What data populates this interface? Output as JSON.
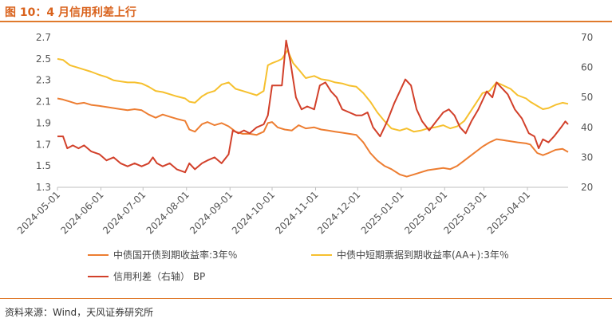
{
  "header": {
    "title": "图 10：4 月信用利差上行"
  },
  "footer": {
    "source": "资料来源：Wind，天风证券研究所"
  },
  "chart_data": {
    "type": "line",
    "x_tick_labels": [
      "2024-05-01",
      "2024-06-01",
      "2024-07-01",
      "2024-08-01",
      "2024-09-01",
      "2024-10-01",
      "2024-11-01",
      "2024-12-01",
      "2025-01-01",
      "2025-02-01",
      "2025-03-01",
      "2025-04-01"
    ],
    "x_range": [
      "2024-05-01",
      "2025-04-30"
    ],
    "y_left": {
      "range": [
        1.3,
        2.7
      ],
      "ticks": [
        "1.3",
        "1.5",
        "1.7",
        "1.9",
        "2.1",
        "2.3",
        "2.5",
        "2.7"
      ]
    },
    "y_right": {
      "range": [
        20,
        70
      ],
      "ticks": [
        "20",
        "30",
        "40",
        "50",
        "60",
        "70"
      ]
    },
    "grid": false,
    "legend_position": "bottom",
    "series": [
      {
        "name": "中债国开债到期收益率:3年％",
        "axis": "left",
        "color": "#ed7d31",
        "points": [
          [
            "2024-05-01",
            2.13
          ],
          [
            "2024-05-05",
            2.12
          ],
          [
            "2024-05-10",
            2.1
          ],
          [
            "2024-05-15",
            2.08
          ],
          [
            "2024-05-20",
            2.09
          ],
          [
            "2024-05-25",
            2.07
          ],
          [
            "2024-05-31",
            2.06
          ],
          [
            "2024-06-05",
            2.05
          ],
          [
            "2024-06-10",
            2.04
          ],
          [
            "2024-06-15",
            2.03
          ],
          [
            "2024-06-20",
            2.02
          ],
          [
            "2024-06-25",
            2.03
          ],
          [
            "2024-06-30",
            2.02
          ],
          [
            "2024-07-05",
            1.98
          ],
          [
            "2024-07-10",
            1.95
          ],
          [
            "2024-07-15",
            1.98
          ],
          [
            "2024-07-20",
            1.96
          ],
          [
            "2024-07-25",
            1.94
          ],
          [
            "2024-07-31",
            1.92
          ],
          [
            "2024-08-03",
            1.84
          ],
          [
            "2024-08-07",
            1.82
          ],
          [
            "2024-08-12",
            1.89
          ],
          [
            "2024-08-16",
            1.91
          ],
          [
            "2024-08-21",
            1.88
          ],
          [
            "2024-08-26",
            1.9
          ],
          [
            "2024-08-31",
            1.87
          ],
          [
            "2024-09-05",
            1.82
          ],
          [
            "2024-09-10",
            1.8
          ],
          [
            "2024-09-15",
            1.8
          ],
          [
            "2024-09-20",
            1.79
          ],
          [
            "2024-09-25",
            1.82
          ],
          [
            "2024-09-28",
            1.9
          ],
          [
            "2024-10-01",
            1.91
          ],
          [
            "2024-10-05",
            1.86
          ],
          [
            "2024-10-10",
            1.84
          ],
          [
            "2024-10-15",
            1.83
          ],
          [
            "2024-10-20",
            1.88
          ],
          [
            "2024-10-25",
            1.85
          ],
          [
            "2024-10-31",
            1.86
          ],
          [
            "2024-11-05",
            1.84
          ],
          [
            "2024-11-10",
            1.83
          ],
          [
            "2024-11-15",
            1.82
          ],
          [
            "2024-11-20",
            1.81
          ],
          [
            "2024-11-25",
            1.8
          ],
          [
            "2024-11-30",
            1.79
          ],
          [
            "2024-12-05",
            1.72
          ],
          [
            "2024-12-10",
            1.62
          ],
          [
            "2024-12-15",
            1.55
          ],
          [
            "2024-12-20",
            1.5
          ],
          [
            "2024-12-25",
            1.47
          ],
          [
            "2024-12-31",
            1.42
          ],
          [
            "2025-01-05",
            1.4
          ],
          [
            "2025-01-10",
            1.42
          ],
          [
            "2025-01-15",
            1.44
          ],
          [
            "2025-01-20",
            1.46
          ],
          [
            "2025-01-25",
            1.47
          ],
          [
            "2025-01-31",
            1.48
          ],
          [
            "2025-02-05",
            1.47
          ],
          [
            "2025-02-10",
            1.5
          ],
          [
            "2025-02-15",
            1.55
          ],
          [
            "2025-02-20",
            1.6
          ],
          [
            "2025-02-25",
            1.65
          ],
          [
            "2025-02-28",
            1.68
          ],
          [
            "2025-03-05",
            1.72
          ],
          [
            "2025-03-10",
            1.75
          ],
          [
            "2025-03-15",
            1.74
          ],
          [
            "2025-03-20",
            1.73
          ],
          [
            "2025-03-25",
            1.72
          ],
          [
            "2025-03-31",
            1.71
          ],
          [
            "2025-04-03",
            1.7
          ],
          [
            "2025-04-08",
            1.62
          ],
          [
            "2025-04-12",
            1.6
          ],
          [
            "2025-04-16",
            1.62
          ],
          [
            "2025-04-21",
            1.65
          ],
          [
            "2025-04-26",
            1.66
          ],
          [
            "2025-04-30",
            1.63
          ]
        ]
      },
      {
        "name": "中债中短期票据到期收益率(AA+):3年％",
        "axis": "left",
        "color": "#f6c02e",
        "points": [
          [
            "2024-05-01",
            2.5
          ],
          [
            "2024-05-05",
            2.49
          ],
          [
            "2024-05-10",
            2.44
          ],
          [
            "2024-05-15",
            2.42
          ],
          [
            "2024-05-20",
            2.4
          ],
          [
            "2024-05-25",
            2.38
          ],
          [
            "2024-05-31",
            2.35
          ],
          [
            "2024-06-05",
            2.33
          ],
          [
            "2024-06-10",
            2.3
          ],
          [
            "2024-06-15",
            2.29
          ],
          [
            "2024-06-20",
            2.28
          ],
          [
            "2024-06-25",
            2.28
          ],
          [
            "2024-06-30",
            2.27
          ],
          [
            "2024-07-05",
            2.24
          ],
          [
            "2024-07-10",
            2.2
          ],
          [
            "2024-07-15",
            2.19
          ],
          [
            "2024-07-20",
            2.17
          ],
          [
            "2024-07-25",
            2.15
          ],
          [
            "2024-07-31",
            2.13
          ],
          [
            "2024-08-03",
            2.1
          ],
          [
            "2024-08-07",
            2.09
          ],
          [
            "2024-08-12",
            2.15
          ],
          [
            "2024-08-16",
            2.18
          ],
          [
            "2024-08-21",
            2.2
          ],
          [
            "2024-08-26",
            2.26
          ],
          [
            "2024-08-31",
            2.28
          ],
          [
            "2024-09-05",
            2.22
          ],
          [
            "2024-09-10",
            2.2
          ],
          [
            "2024-09-15",
            2.18
          ],
          [
            "2024-09-20",
            2.16
          ],
          [
            "2024-09-25",
            2.2
          ],
          [
            "2024-09-28",
            2.44
          ],
          [
            "2024-10-01",
            2.46
          ],
          [
            "2024-10-05",
            2.48
          ],
          [
            "2024-10-08",
            2.5
          ],
          [
            "2024-10-12",
            2.58
          ],
          [
            "2024-10-16",
            2.46
          ],
          [
            "2024-10-20",
            2.4
          ],
          [
            "2024-10-25",
            2.32
          ],
          [
            "2024-10-31",
            2.34
          ],
          [
            "2024-11-05",
            2.31
          ],
          [
            "2024-11-10",
            2.3
          ],
          [
            "2024-11-15",
            2.28
          ],
          [
            "2024-11-20",
            2.27
          ],
          [
            "2024-11-25",
            2.25
          ],
          [
            "2024-11-30",
            2.24
          ],
          [
            "2024-12-05",
            2.18
          ],
          [
            "2024-12-10",
            2.1
          ],
          [
            "2024-12-15",
            2.0
          ],
          [
            "2024-12-20",
            1.92
          ],
          [
            "2024-12-25",
            1.85
          ],
          [
            "2024-12-31",
            1.83
          ],
          [
            "2025-01-05",
            1.85
          ],
          [
            "2025-01-10",
            1.82
          ],
          [
            "2025-01-15",
            1.83
          ],
          [
            "2025-01-20",
            1.85
          ],
          [
            "2025-01-25",
            1.86
          ],
          [
            "2025-01-31",
            1.88
          ],
          [
            "2025-02-05",
            1.85
          ],
          [
            "2025-02-10",
            1.87
          ],
          [
            "2025-02-15",
            1.92
          ],
          [
            "2025-02-20",
            2.02
          ],
          [
            "2025-02-25",
            2.12
          ],
          [
            "2025-02-28",
            2.18
          ],
          [
            "2025-03-05",
            2.2
          ],
          [
            "2025-03-10",
            2.28
          ],
          [
            "2025-03-15",
            2.25
          ],
          [
            "2025-03-20",
            2.22
          ],
          [
            "2025-03-25",
            2.16
          ],
          [
            "2025-03-31",
            2.13
          ],
          [
            "2025-04-03",
            2.1
          ],
          [
            "2025-04-08",
            2.06
          ],
          [
            "2025-04-12",
            2.03
          ],
          [
            "2025-04-16",
            2.04
          ],
          [
            "2025-04-21",
            2.07
          ],
          [
            "2025-04-26",
            2.09
          ],
          [
            "2025-04-30",
            2.08
          ]
        ]
      },
      {
        "name": "信用利差（右轴） BP",
        "axis": "right",
        "color": "#d2402a",
        "points": [
          [
            "2024-05-01",
            37
          ],
          [
            "2024-05-05",
            37
          ],
          [
            "2024-05-08",
            33
          ],
          [
            "2024-05-12",
            34
          ],
          [
            "2024-05-16",
            33
          ],
          [
            "2024-05-20",
            34
          ],
          [
            "2024-05-25",
            32
          ],
          [
            "2024-05-31",
            31
          ],
          [
            "2024-06-05",
            29
          ],
          [
            "2024-06-10",
            30
          ],
          [
            "2024-06-15",
            28
          ],
          [
            "2024-06-20",
            27
          ],
          [
            "2024-06-25",
            28
          ],
          [
            "2024-06-30",
            27
          ],
          [
            "2024-07-05",
            28
          ],
          [
            "2024-07-08",
            30
          ],
          [
            "2024-07-11",
            28
          ],
          [
            "2024-07-15",
            27
          ],
          [
            "2024-07-20",
            28
          ],
          [
            "2024-07-25",
            26
          ],
          [
            "2024-07-31",
            25
          ],
          [
            "2024-08-03",
            28
          ],
          [
            "2024-08-07",
            26
          ],
          [
            "2024-08-12",
            28
          ],
          [
            "2024-08-16",
            29
          ],
          [
            "2024-08-21",
            30
          ],
          [
            "2024-08-26",
            28
          ],
          [
            "2024-08-31",
            31
          ],
          [
            "2024-09-03",
            39
          ],
          [
            "2024-09-07",
            38
          ],
          [
            "2024-09-11",
            39
          ],
          [
            "2024-09-15",
            38
          ],
          [
            "2024-09-20",
            40
          ],
          [
            "2024-09-25",
            41
          ],
          [
            "2024-09-28",
            44
          ],
          [
            "2024-10-01",
            54
          ],
          [
            "2024-10-05",
            54
          ],
          [
            "2024-10-08",
            54
          ],
          [
            "2024-10-11",
            69
          ],
          [
            "2024-10-14",
            62
          ],
          [
            "2024-10-18",
            50
          ],
          [
            "2024-10-22",
            46
          ],
          [
            "2024-10-26",
            47
          ],
          [
            "2024-10-31",
            46
          ],
          [
            "2024-11-04",
            54
          ],
          [
            "2024-11-08",
            55
          ],
          [
            "2024-11-12",
            52
          ],
          [
            "2024-11-16",
            50
          ],
          [
            "2024-11-20",
            46
          ],
          [
            "2024-11-25",
            45
          ],
          [
            "2024-11-30",
            44
          ],
          [
            "2024-12-04",
            44
          ],
          [
            "2024-12-08",
            45
          ],
          [
            "2024-12-12",
            40
          ],
          [
            "2024-12-17",
            37
          ],
          [
            "2024-12-22",
            42
          ],
          [
            "2024-12-27",
            48
          ],
          [
            "2024-12-31",
            52
          ],
          [
            "2025-01-04",
            56
          ],
          [
            "2025-01-08",
            54
          ],
          [
            "2025-01-12",
            46
          ],
          [
            "2025-01-16",
            42
          ],
          [
            "2025-01-21",
            39
          ],
          [
            "2025-01-26",
            42
          ],
          [
            "2025-01-31",
            45
          ],
          [
            "2025-02-04",
            46
          ],
          [
            "2025-02-08",
            44
          ],
          [
            "2025-02-12",
            40
          ],
          [
            "2025-02-16",
            38
          ],
          [
            "2025-02-20",
            42
          ],
          [
            "2025-02-25",
            46
          ],
          [
            "2025-02-28",
            49
          ],
          [
            "2025-03-03",
            52
          ],
          [
            "2025-03-07",
            50
          ],
          [
            "2025-03-10",
            55
          ],
          [
            "2025-03-14",
            53
          ],
          [
            "2025-03-18",
            51
          ],
          [
            "2025-03-23",
            46
          ],
          [
            "2025-03-28",
            43
          ],
          [
            "2025-04-02",
            38
          ],
          [
            "2025-04-06",
            37
          ],
          [
            "2025-04-09",
            33
          ],
          [
            "2025-04-12",
            36
          ],
          [
            "2025-04-16",
            35
          ],
          [
            "2025-04-20",
            37
          ],
          [
            "2025-04-25",
            40
          ],
          [
            "2025-04-28",
            42
          ],
          [
            "2025-04-30",
            41
          ]
        ]
      }
    ]
  }
}
